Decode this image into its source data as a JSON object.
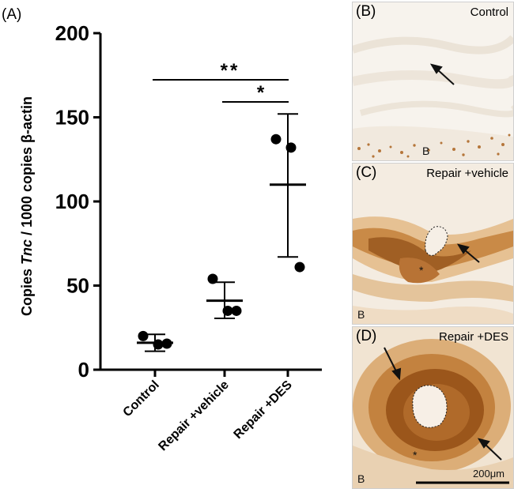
{
  "panel_a": {
    "label": "(A)",
    "chart_data": {
      "type": "scatter",
      "title": "",
      "ylabel_prefix": "Copies ",
      "ylabel_italic": "Tnc",
      "ylabel_suffix": " / 1000 copies β-actin",
      "xlabel": "",
      "ylim": [
        0,
        200
      ],
      "yticks": [
        0,
        50,
        100,
        150,
        200
      ],
      "categories": [
        "Control",
        "Repair +vehicle",
        "Repair +DES"
      ],
      "points": [
        {
          "category": "Control",
          "values": [
            20,
            15,
            15.5
          ]
        },
        {
          "category": "Repair +vehicle",
          "values": [
            54,
            35,
            35
          ]
        },
        {
          "category": "Repair +DES",
          "values": [
            137,
            132,
            61
          ]
        }
      ],
      "summary": [
        {
          "category": "Control",
          "mean": 16,
          "lower": 11,
          "upper": 21
        },
        {
          "category": "Repair +vehicle",
          "mean": 41,
          "lower": 30.5,
          "upper": 52
        },
        {
          "category": "Repair +DES",
          "mean": 110,
          "lower": 67,
          "upper": 152
        }
      ],
      "significance": [
        {
          "from": "Control",
          "to": "Repair +DES",
          "label": "**"
        },
        {
          "from": "Repair +vehicle",
          "to": "Repair +DES",
          "label": "*"
        }
      ],
      "grid": false
    }
  },
  "panels": {
    "b": {
      "label": "(B)",
      "condition": "Control",
      "bone_mark": "B"
    },
    "c": {
      "label": "(C)",
      "condition": "Repair +vehicle",
      "bone_mark": "B",
      "star": "*"
    },
    "d": {
      "label": "(D)",
      "condition": "Repair +DES",
      "bone_mark": "B",
      "star": "*",
      "scale_label": "200μm"
    }
  },
  "colors": {
    "stain_dark": "#8a4a16",
    "stain_mid": "#c98a47",
    "stain_light": "#ecd4b3",
    "background_light": "#f5efe6"
  }
}
